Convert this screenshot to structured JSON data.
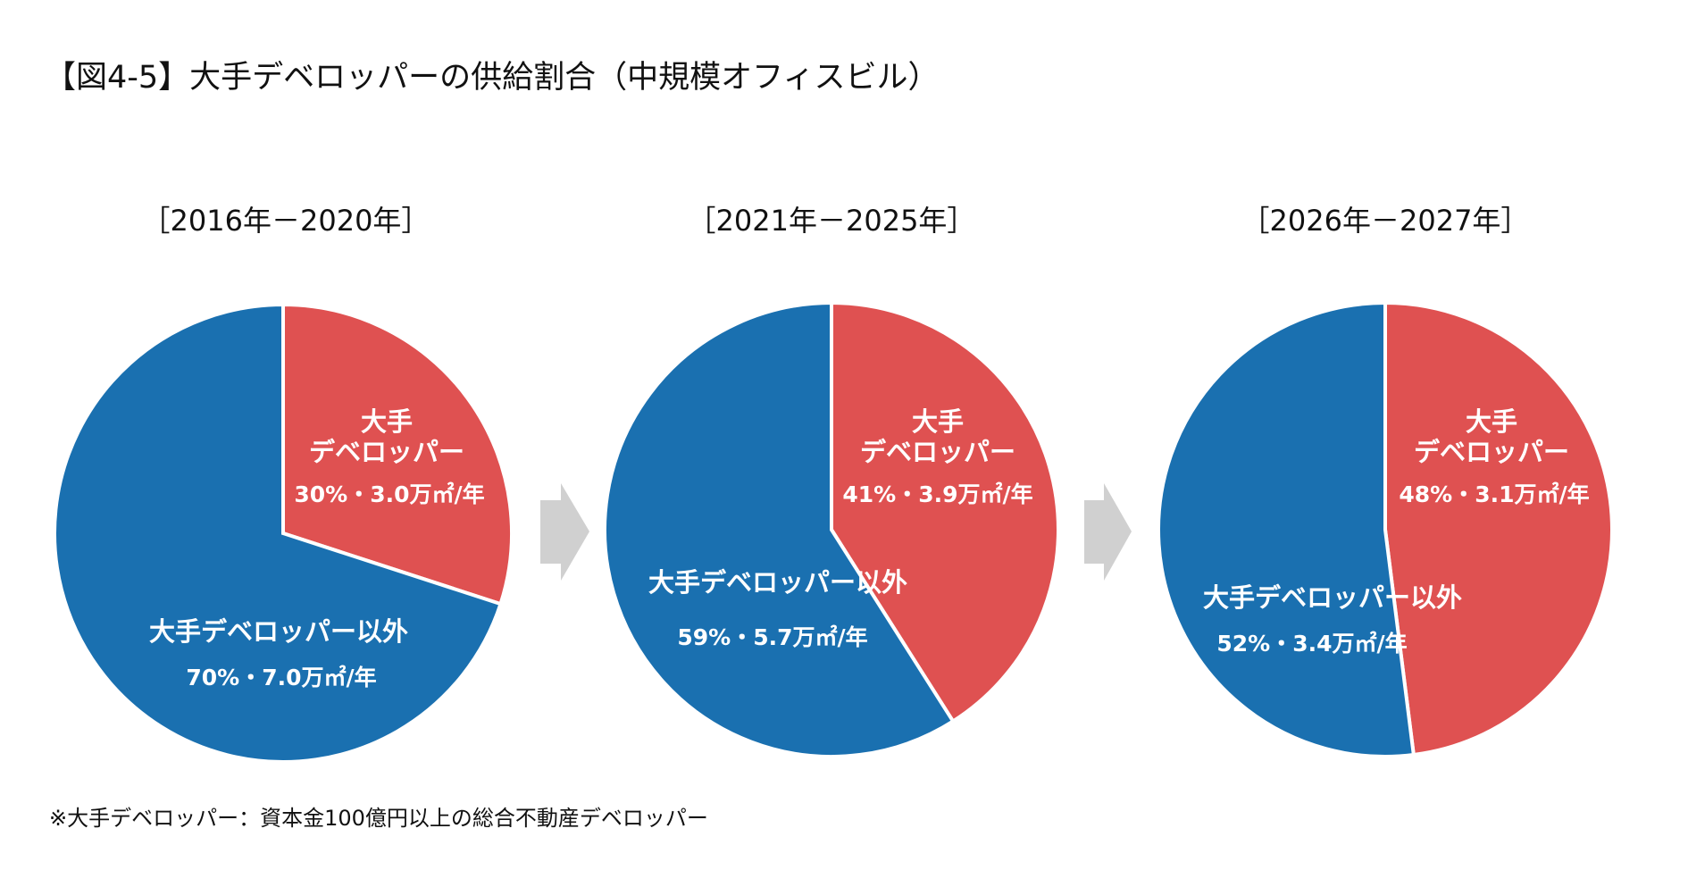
{
  "colors": {
    "major": "#df5151",
    "other": "#1a70b0",
    "arrow": "#d0d0d0"
  },
  "chart_data": {
    "type": "pie",
    "title": "【図4-5】大手デベロッパーの供給割合（中規模オフィスビル）",
    "footnote": "※大手デベロッパー：資本金100億円以上の総合不動産デベロッパー",
    "charts": [
      {
        "period": "［2016年－2020年］",
        "slices": [
          {
            "name_line1": "大手",
            "name_line2": "デベロッパー",
            "percent": 30,
            "label": "30%・3.0万㎡/年"
          },
          {
            "name_line1": "大手デベロッパー以外",
            "name_line2": "",
            "percent": 70,
            "label": "70%・7.0万㎡/年"
          }
        ]
      },
      {
        "period": "［2021年－2025年］",
        "slices": [
          {
            "name_line1": "大手",
            "name_line2": "デベロッパー",
            "percent": 41,
            "label": "41%・3.9万㎡/年"
          },
          {
            "name_line1": "大手デベロッパー以外",
            "name_line2": "",
            "percent": 59,
            "label": "59%・5.7万㎡/年"
          }
        ]
      },
      {
        "period": "［2026年－2027年］",
        "slices": [
          {
            "name_line1": "大手",
            "name_line2": "デベロッパー",
            "percent": 48,
            "label": "48%・3.1万㎡/年"
          },
          {
            "name_line1": "大手デベロッパー以外",
            "name_line2": "",
            "percent": 52,
            "label": "52%・3.4万㎡/年"
          }
        ]
      }
    ]
  }
}
